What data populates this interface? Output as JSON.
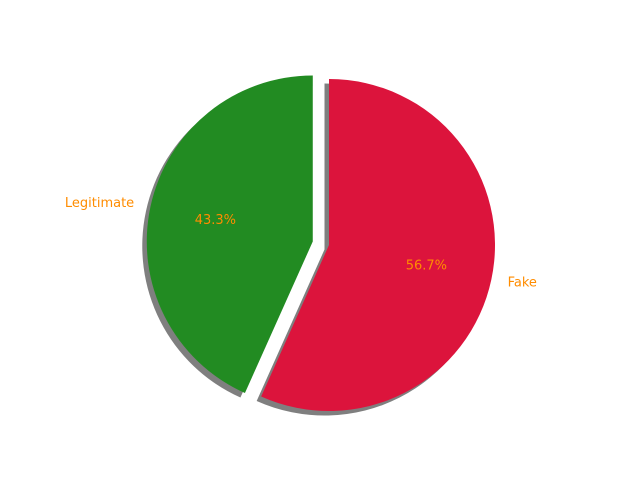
{
  "chart_data": {
    "type": "pie",
    "slices": [
      {
        "label": "Legitimate",
        "value": 43.3,
        "pct_label": "43.3%",
        "color": "#228b22",
        "exploded": true
      },
      {
        "label": "Fake",
        "value": 56.7,
        "pct_label": "56.7%",
        "color": "#dc143c",
        "exploded": false
      }
    ],
    "start_angle_deg": 90,
    "direction": "counterclockwise",
    "shadow": true,
    "label_color": "#ff8c00"
  }
}
